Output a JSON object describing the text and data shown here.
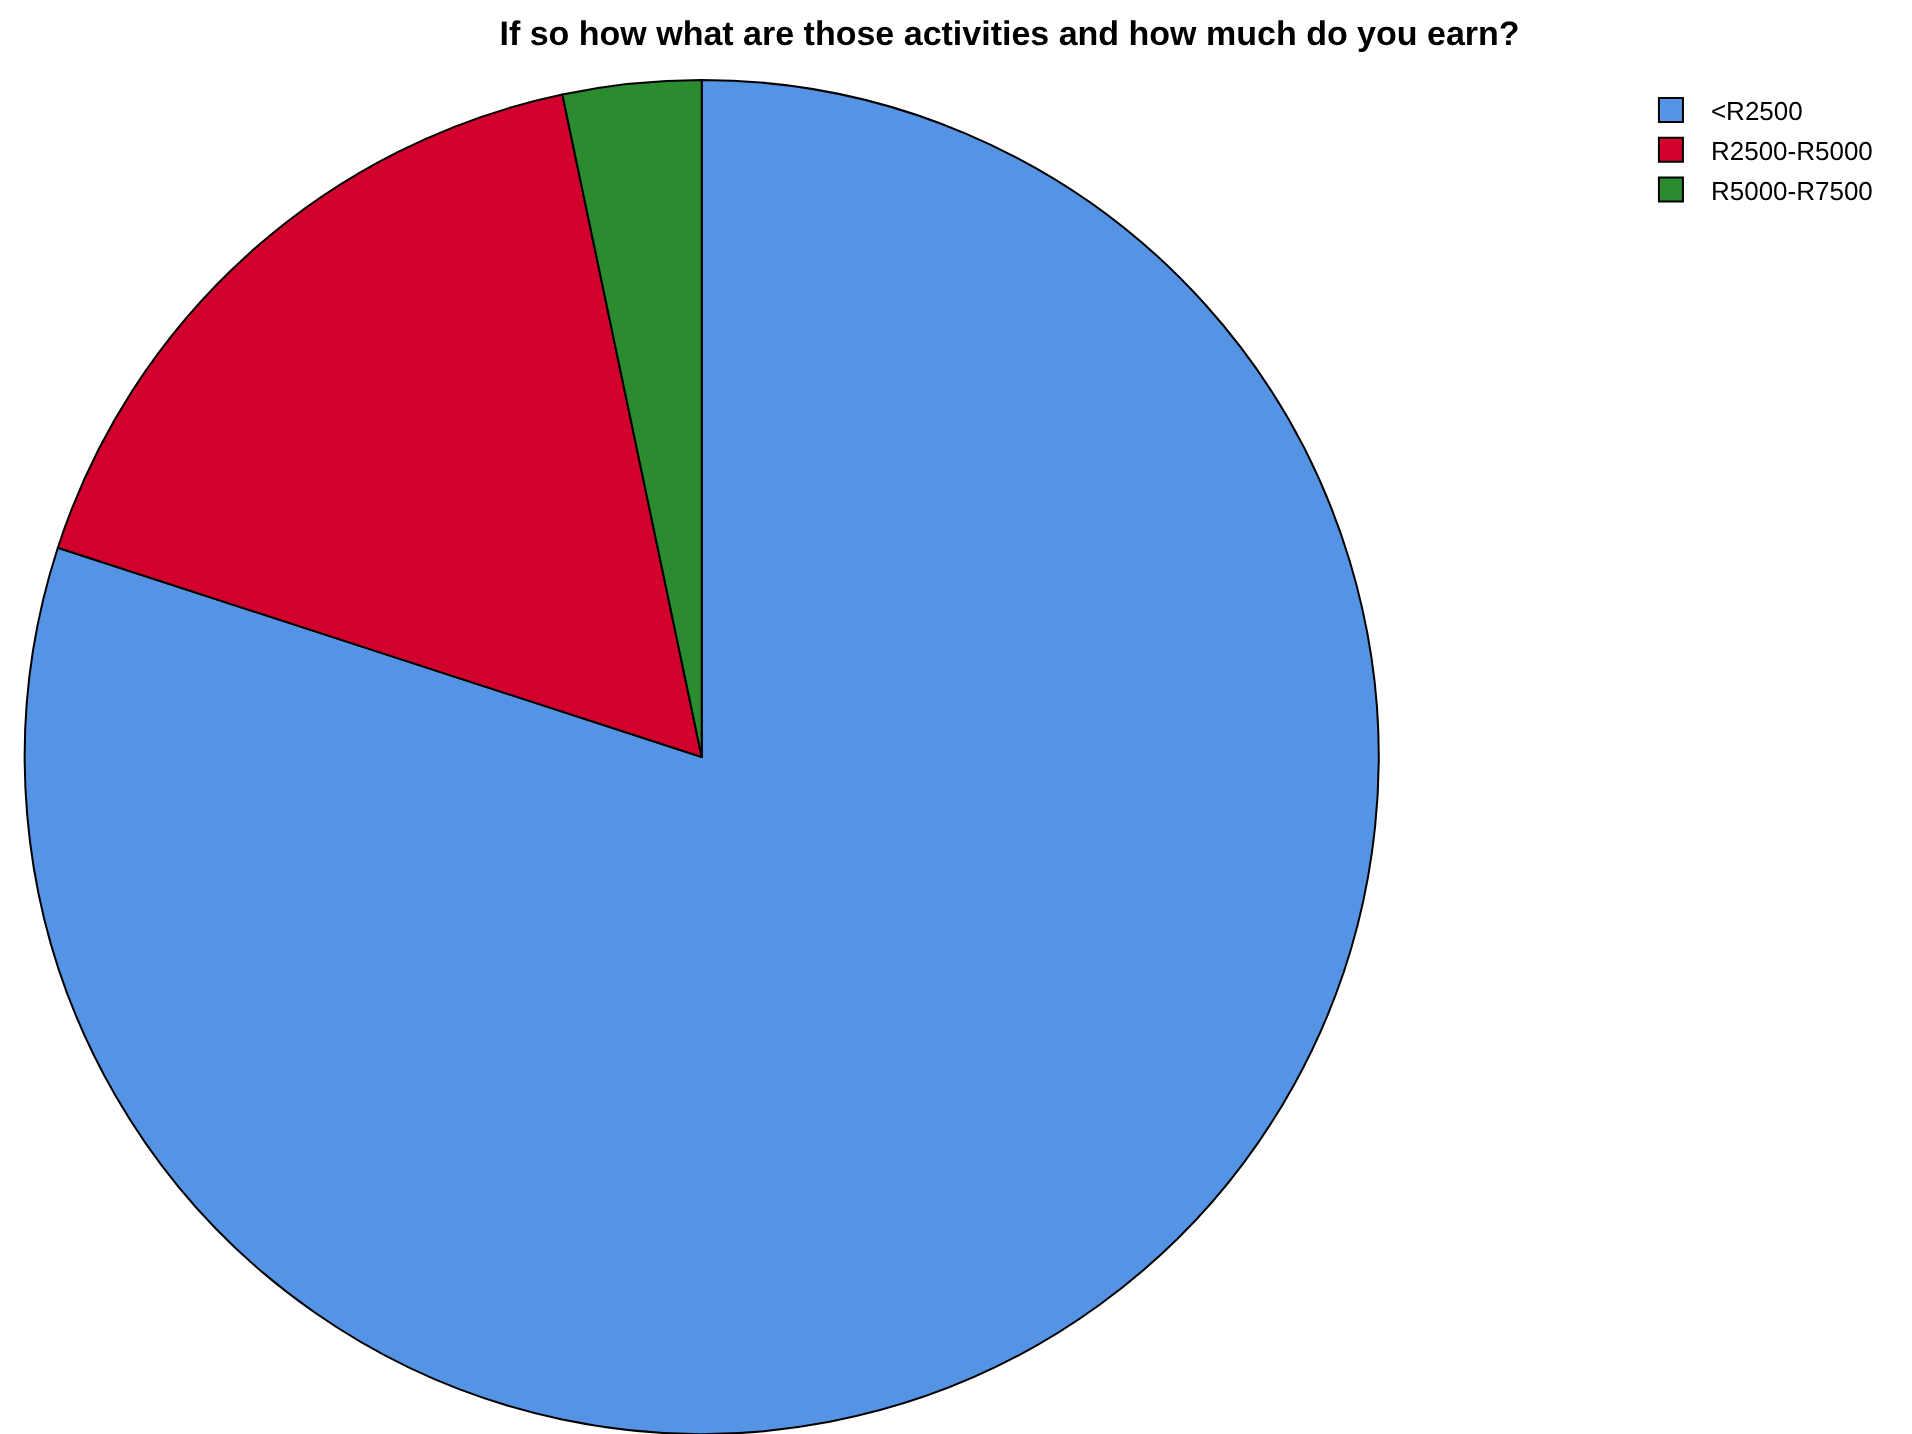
{
  "chart_data": {
    "type": "pie",
    "title": "If so how what are those activities and how much do you earn?",
    "categories": [
      "<R2500",
      "R2500-R5000",
      "R5000-R7500"
    ],
    "values": [
      80,
      16.7,
      3.3
    ],
    "colors": [
      "#5593e4",
      "#d2002d",
      "#2a8b2f"
    ],
    "legend": "top right"
  }
}
